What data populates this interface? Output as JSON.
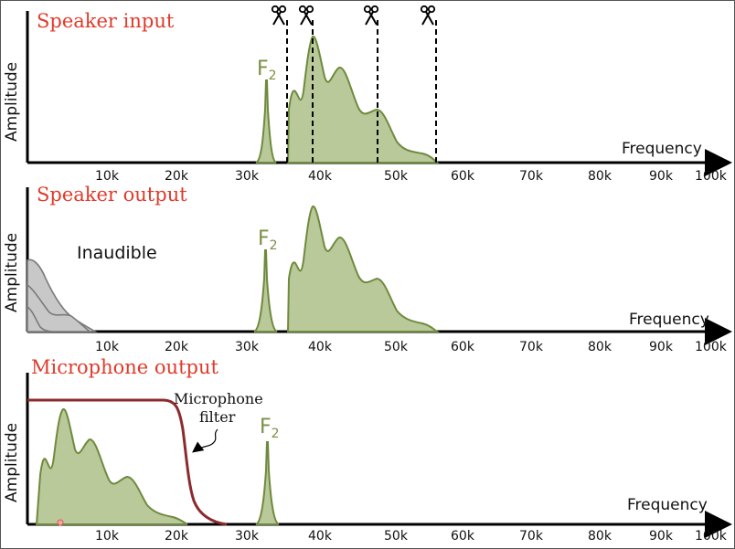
{
  "panels": [
    {
      "title": "Speaker input",
      "ylabel": "Amplitude",
      "xlabel": "Frequency",
      "ticks": [
        "10k",
        "20k",
        "30k",
        "40k",
        "50k",
        "60k",
        "70k",
        "80k",
        "90k",
        "100k"
      ],
      "peak_label": "F",
      "peak_sub": "2"
    },
    {
      "title": "Speaker output",
      "ylabel": "Amplitude",
      "xlabel": "Frequency",
      "ticks": [
        "10k",
        "20k",
        "30k",
        "40k",
        "50k",
        "60k",
        "70k",
        "80k",
        "90k",
        "100k"
      ],
      "peak_label": "F",
      "peak_sub": "2",
      "note": "Inaudible"
    },
    {
      "title": "Microphone output",
      "ylabel": "Amplitude",
      "xlabel": "Frequency",
      "ticks": [
        "10k",
        "20k",
        "30k",
        "40k",
        "50k",
        "60k",
        "70k",
        "80k",
        "90k",
        "100k"
      ],
      "peak_label": "F",
      "peak_sub": "2",
      "filter_label_1": "Microphone",
      "filter_label_2": "filter"
    }
  ],
  "colors": {
    "title": "#e03a2a",
    "spectrum_fill": "#b9c99a",
    "spectrum_stroke": "#6f8a3e",
    "filter": "#8b2b2f",
    "inaudible": "#c8c8c8"
  },
  "icons": [
    "scissors-icon",
    "scissors-icon",
    "scissors-icon",
    "scissors-icon"
  ]
}
